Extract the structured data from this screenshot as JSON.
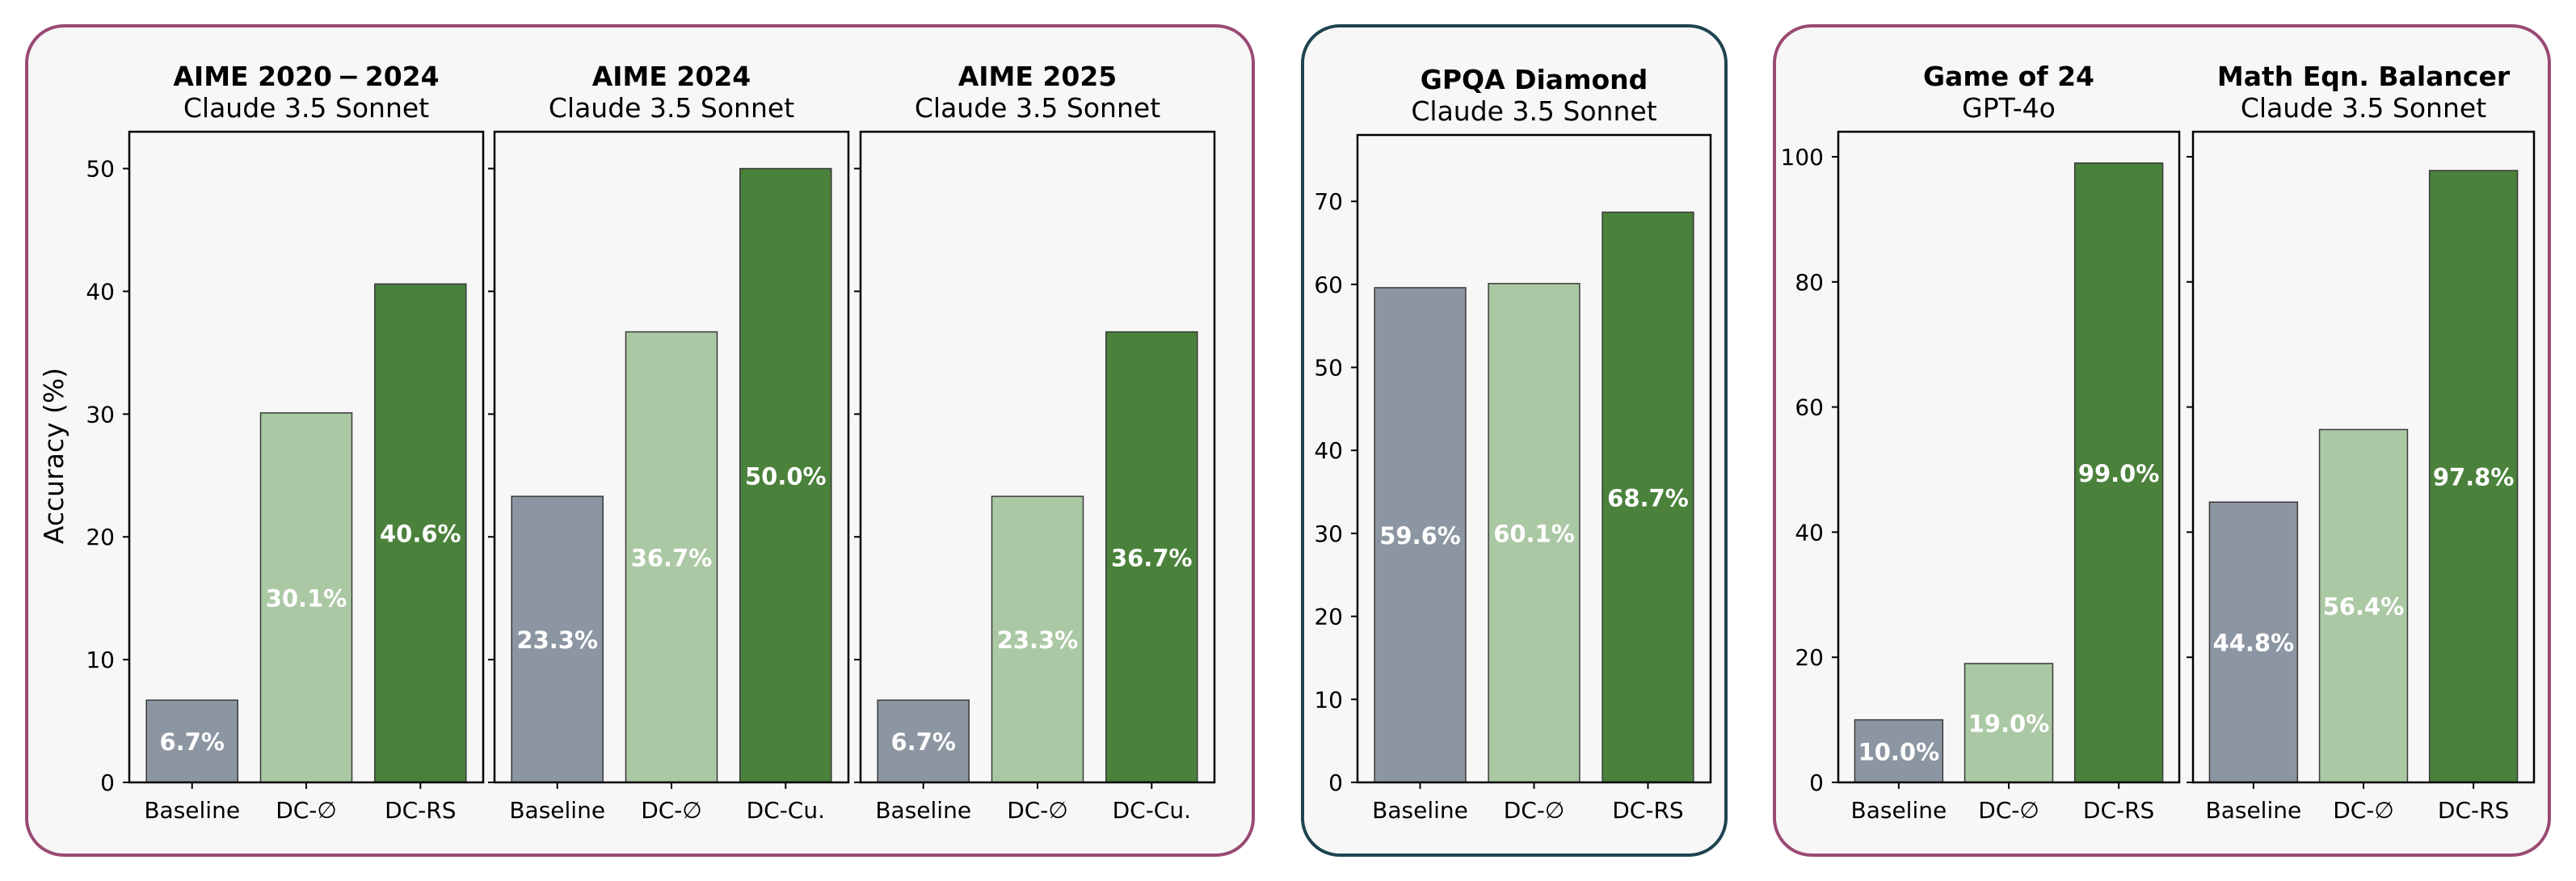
{
  "figure": {
    "y_axis_label": "Accuracy (%)",
    "colors": {
      "baseline": "#8c96a2",
      "dc_empty": "#abc8a4",
      "dc_best": "#4a813b",
      "frame_math": "#9a4a74",
      "frame_gpqa": "#1d4450",
      "panel_bg": "#f7f7f7",
      "value_label": "#ffffff"
    }
  },
  "chart_data": [
    {
      "type": "bar",
      "group": "math",
      "title": "AIME 2020 − 2024",
      "subtitle": "Claude 3.5 Sonnet",
      "categories": [
        "Baseline",
        "DC-∅",
        "DC-RS"
      ],
      "values": [
        6.7,
        30.1,
        40.6
      ],
      "value_labels": [
        "6.7%",
        "30.1%",
        "40.6%"
      ],
      "ylim": [
        0,
        53
      ],
      "yticks": [
        "0",
        "10",
        "20",
        "30",
        "40",
        "50"
      ],
      "ylabel": "Accuracy (%)"
    },
    {
      "type": "bar",
      "group": "math",
      "title": "AIME 2024",
      "subtitle": "Claude 3.5 Sonnet",
      "categories": [
        "Baseline",
        "DC-∅",
        "DC-Cu."
      ],
      "values": [
        23.3,
        36.7,
        50.0
      ],
      "value_labels": [
        "23.3%",
        "36.7%",
        "50.0%"
      ],
      "ylim": [
        0,
        53
      ]
    },
    {
      "type": "bar",
      "group": "math",
      "title": "AIME 2025",
      "subtitle": "Claude 3.5 Sonnet",
      "categories": [
        "Baseline",
        "DC-∅",
        "DC-Cu."
      ],
      "values": [
        6.7,
        23.3,
        36.7
      ],
      "value_labels": [
        "6.7%",
        "23.3%",
        "36.7%"
      ],
      "ylim": [
        0,
        53
      ]
    },
    {
      "type": "bar",
      "group": "gpqa",
      "title": "GPQA Diamond",
      "subtitle": "Claude 3.5 Sonnet",
      "categories": [
        "Baseline",
        "DC-∅",
        "DC-RS"
      ],
      "values": [
        59.6,
        60.1,
        68.7
      ],
      "value_labels": [
        "59.6%",
        "60.1%",
        "68.7%"
      ],
      "ylim": [
        0,
        78
      ],
      "yticks": [
        "0",
        "10",
        "20",
        "30",
        "40",
        "50",
        "60",
        "70"
      ]
    },
    {
      "type": "bar",
      "group": "puzzles",
      "title": "Game of 24",
      "subtitle": "GPT-4o",
      "categories": [
        "Baseline",
        "DC-∅",
        "DC-RS"
      ],
      "values": [
        10.0,
        19.0,
        99.0
      ],
      "value_labels": [
        "10.0%",
        "19.0%",
        "99.0%"
      ],
      "ylim": [
        0,
        104
      ],
      "yticks": [
        "0",
        "20",
        "40",
        "60",
        "80",
        "100"
      ]
    },
    {
      "type": "bar",
      "group": "puzzles",
      "title": "Math Eqn. Balancer",
      "subtitle": "Claude 3.5 Sonnet",
      "categories": [
        "Baseline",
        "DC-∅",
        "DC-RS"
      ],
      "values": [
        44.8,
        56.4,
        97.8
      ],
      "value_labels": [
        "44.8%",
        "56.4%",
        "97.8%"
      ],
      "ylim": [
        0,
        104
      ]
    }
  ]
}
